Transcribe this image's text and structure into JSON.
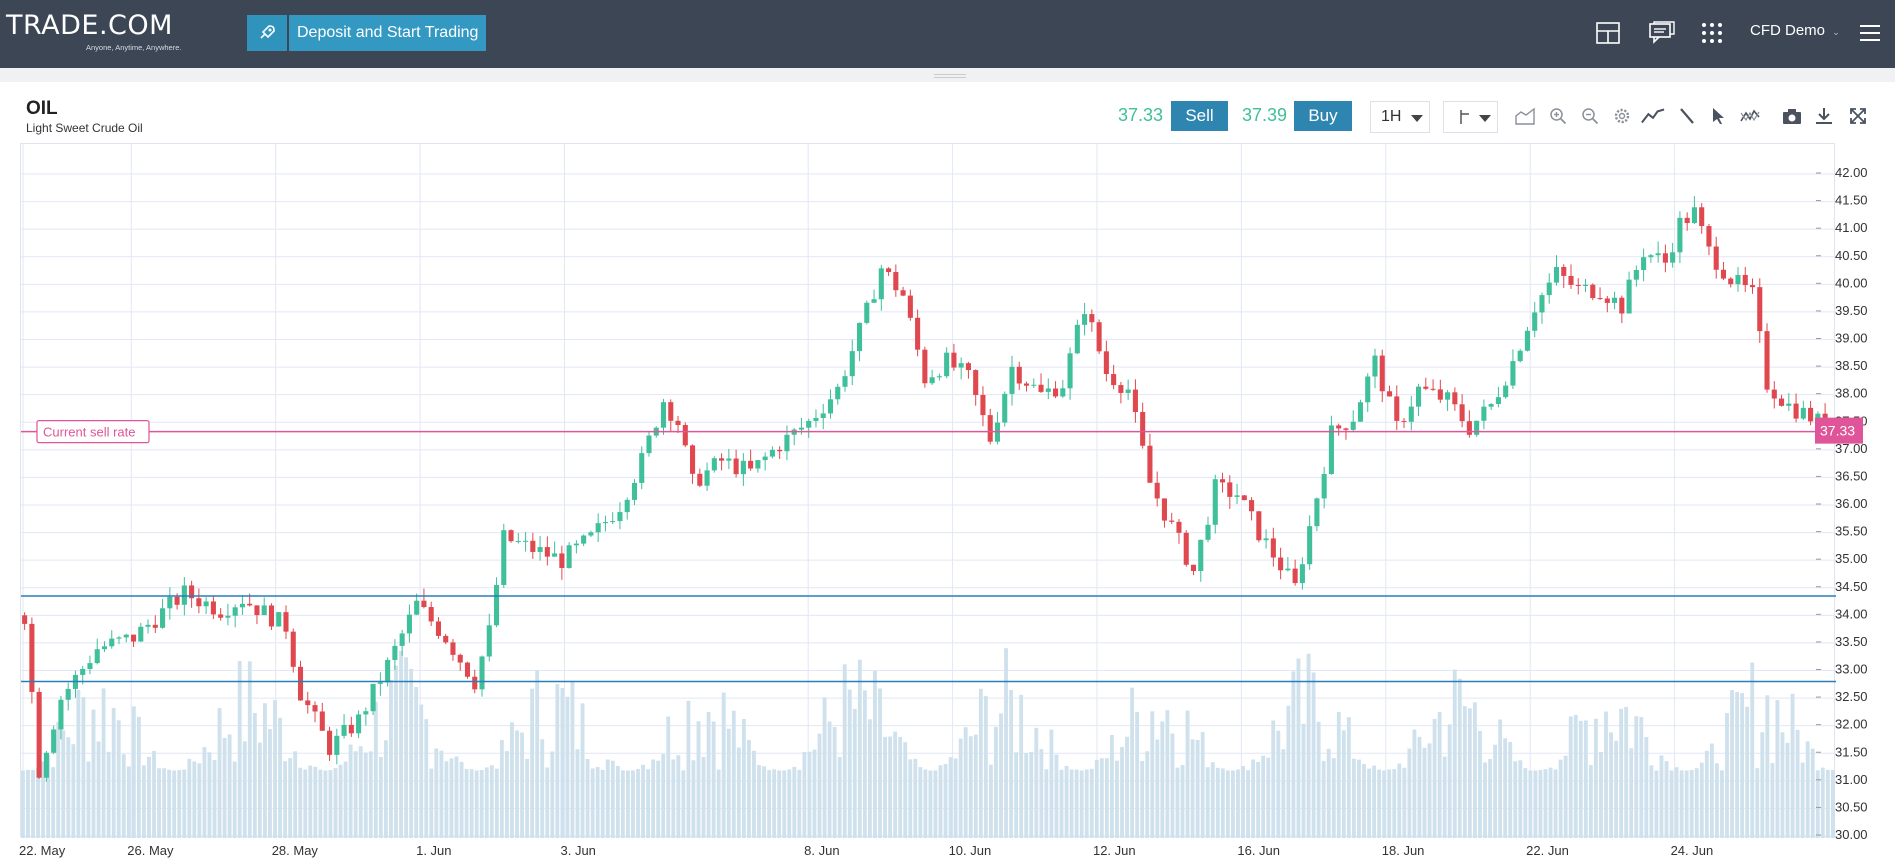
{
  "header": {
    "logo": "TRADE.COM",
    "tagline": "Anyone, Anytime, Anywhere.",
    "deposit_label": "Deposit and Start Trading",
    "account": "CFD Demo"
  },
  "instrument": {
    "symbol": "OIL",
    "name": "Light Sweet Crude Oil",
    "sell_price": "37.33",
    "sell_label": "Sell",
    "buy_price": "37.39",
    "buy_label": "Buy",
    "timeframe": "1H"
  },
  "colors": {
    "up": "#3fbf9a",
    "down": "#e0484f",
    "current_rate": "#e0559a",
    "support": "#2a7fb8",
    "volume": "#cfe1ec"
  },
  "toolbar_icons": [
    "chart-type-icon",
    "zoom-in-icon",
    "zoom-out-icon",
    "settings-icon",
    "indicators-icon",
    "draw-line-icon",
    "cursor-icon",
    "compare-icon",
    "camera-icon",
    "download-icon",
    "fullscreen-icon"
  ],
  "chart_data": {
    "type": "candlestick",
    "symbol": "OIL",
    "x_ticks": [
      "22. May",
      "26. May",
      "28. May",
      "1. Jun",
      "3. Jun",
      "8. Jun",
      "10. Jun",
      "12. Jun",
      "16. Jun",
      "18. Jun",
      "22. Jun",
      "24. Jun"
    ],
    "y_ticks": [
      "42.00",
      "41.50",
      "41.00",
      "40.50",
      "40.00",
      "39.50",
      "39.00",
      "38.50",
      "38.00",
      "37.50",
      "37.00",
      "36.50",
      "36.00",
      "35.50",
      "35.00",
      "34.50",
      "34.00",
      "33.50",
      "33.00",
      "32.50",
      "32.00",
      "31.50",
      "31.00",
      "30.50",
      "30.00"
    ],
    "ylim": [
      30.0,
      42.0
    ],
    "price_path": [
      [
        0,
        34.0
      ],
      [
        2,
        31.2
      ],
      [
        5,
        32.5
      ],
      [
        10,
        33.4
      ],
      [
        15,
        33.6
      ],
      [
        22,
        34.4
      ],
      [
        27,
        34.1
      ],
      [
        30,
        34.3
      ],
      [
        36,
        33.8
      ],
      [
        38,
        32.6
      ],
      [
        42,
        31.6
      ],
      [
        46,
        32.1
      ],
      [
        50,
        33.1
      ],
      [
        54,
        34.2
      ],
      [
        58,
        33.6
      ],
      [
        62,
        32.8
      ],
      [
        64,
        33.7
      ],
      [
        66,
        35.4
      ],
      [
        70,
        35.2
      ],
      [
        74,
        35.0
      ],
      [
        78,
        35.4
      ],
      [
        82,
        36.0
      ],
      [
        85,
        36.8
      ],
      [
        88,
        37.9
      ],
      [
        90,
        37.5
      ],
      [
        92,
        36.4
      ],
      [
        96,
        36.8
      ],
      [
        100,
        36.6
      ],
      [
        104,
        37.1
      ],
      [
        108,
        37.5
      ],
      [
        112,
        38.1
      ],
      [
        116,
        39.5
      ],
      [
        118,
        40.3
      ],
      [
        121,
        39.8
      ],
      [
        124,
        38.3
      ],
      [
        127,
        38.6
      ],
      [
        130,
        38.3
      ],
      [
        133,
        37.2
      ],
      [
        136,
        38.5
      ],
      [
        140,
        38.0
      ],
      [
        143,
        38.2
      ],
      [
        146,
        39.6
      ],
      [
        149,
        38.4
      ],
      [
        152,
        38.1
      ],
      [
        155,
        36.4
      ],
      [
        158,
        35.6
      ],
      [
        161,
        34.8
      ],
      [
        164,
        36.3
      ],
      [
        167,
        36.2
      ],
      [
        170,
        35.5
      ],
      [
        173,
        34.9
      ],
      [
        175,
        34.5
      ],
      [
        177,
        35.6
      ],
      [
        180,
        37.3
      ],
      [
        183,
        37.6
      ],
      [
        186,
        38.6
      ],
      [
        189,
        37.4
      ],
      [
        192,
        38.1
      ],
      [
        196,
        37.9
      ],
      [
        199,
        37.4
      ],
      [
        202,
        37.8
      ],
      [
        205,
        38.6
      ],
      [
        208,
        39.6
      ],
      [
        211,
        40.2
      ],
      [
        214,
        39.9
      ],
      [
        217,
        39.9
      ],
      [
        220,
        39.6
      ],
      [
        223,
        40.6
      ],
      [
        226,
        40.4
      ],
      [
        228,
        41.1
      ],
      [
        230,
        41.3
      ],
      [
        232,
        40.6
      ],
      [
        235,
        40.1
      ],
      [
        238,
        39.8
      ],
      [
        240,
        38.2
      ],
      [
        243,
        37.8
      ],
      [
        246,
        37.6
      ],
      [
        249,
        37.33
      ]
    ]
  }
}
